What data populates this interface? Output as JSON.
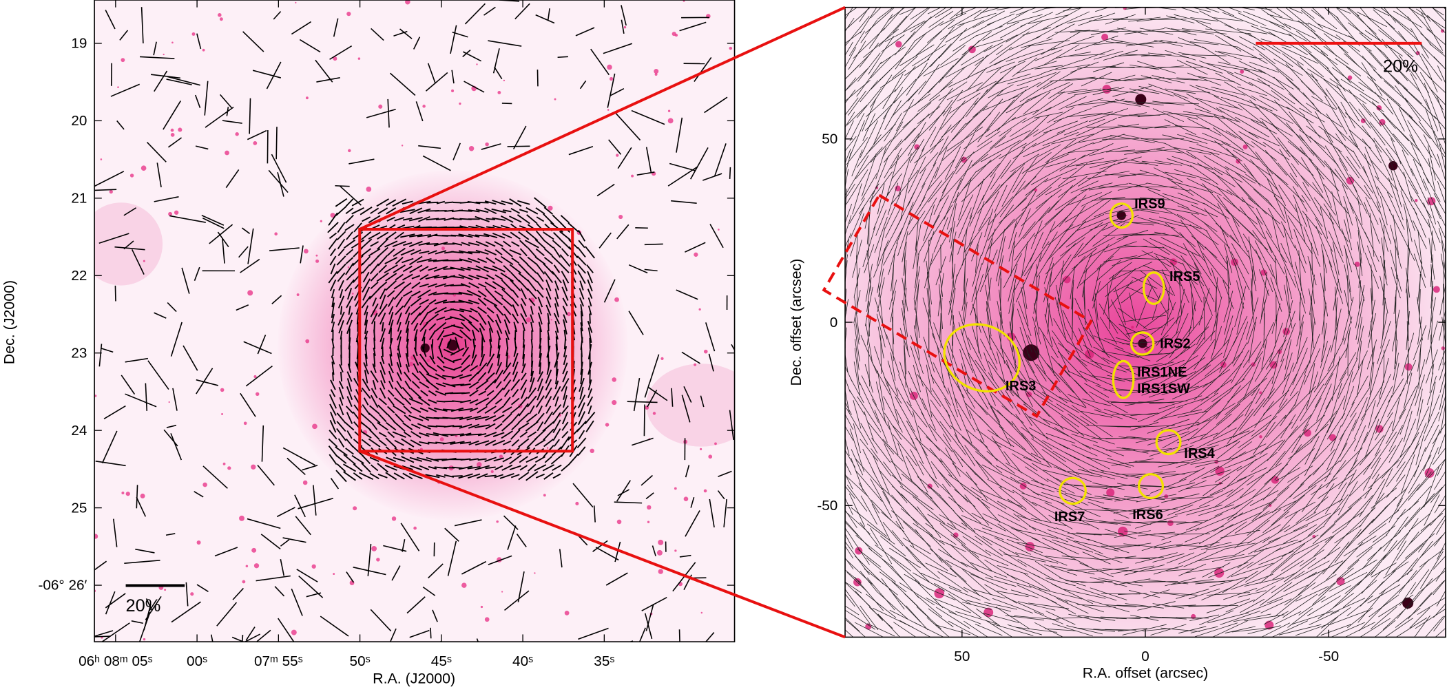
{
  "chart_data": [
    {
      "type": "image",
      "xlabel": "R.A. (J2000)",
      "ylabel": "Dec. (J2000)",
      "xlim": [
        66.3,
        27.0
      ],
      "xticks": [
        {
          "value": 65,
          "label": "06ʰ 08ᵐ 05ˢ"
        },
        {
          "value": 60,
          "label": "00ˢ"
        },
        {
          "value": 55,
          "label": "07ᵐ 55ˢ"
        },
        {
          "value": 50,
          "label": "50ˢ"
        },
        {
          "value": 45,
          "label": "45ˢ"
        },
        {
          "value": 40,
          "label": "40ˢ"
        },
        {
          "value": 35,
          "label": "35ˢ"
        }
      ],
      "ylim": [
        26.73,
        18.44
      ],
      "yticks": [
        19,
        20,
        21,
        22,
        23,
        24,
        25,
        {
          "value": 26,
          "label": "-06° 26′"
        }
      ],
      "scalebar_label": "20%",
      "scalebar_color": "#000000"
    },
    {
      "type": "image",
      "xlabel": "R.A. offset (arcsec)",
      "ylabel": "Dec. offset (arcsec)",
      "xlim": [
        81.9,
        -81.9
      ],
      "xticks": [
        50,
        0,
        -50
      ],
      "ylim": [
        -85.9,
        85.9
      ],
      "yticks": [
        -50,
        0,
        50
      ],
      "scalebar_label": "20%",
      "scalebar_color": "#ee1111",
      "source_color": "#f2e200",
      "sources": [
        {
          "label": "IRS9",
          "x": 6.5,
          "y": 29.1
        },
        {
          "label": "IRS5",
          "x": -2.3,
          "y": 9.3
        },
        {
          "label": "IRS2",
          "x": 0.8,
          "y": -5.8
        },
        {
          "label": "IRS1NE",
          "x": 6.0,
          "y": -13.6
        },
        {
          "label": "IRS1SW",
          "x": 7.0,
          "y": -17.6
        },
        {
          "label": "IRS4",
          "x": -6.3,
          "y": -32.7
        },
        {
          "label": "IRS6",
          "x": -1.5,
          "y": -44.7
        },
        {
          "label": "IRS7",
          "x": 19.8,
          "y": -46.0
        },
        {
          "label": "IRS3",
          "x": 36.4,
          "y": -4.5
        }
      ]
    }
  ]
}
